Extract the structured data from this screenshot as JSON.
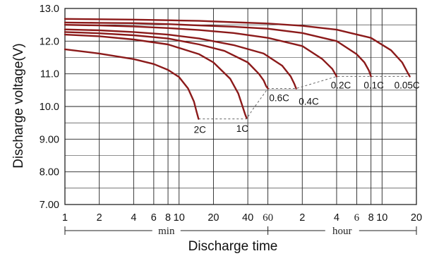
{
  "chart_data": {
    "type": "line",
    "title": "",
    "xlabel": "Discharge time",
    "ylabel": "Discharge voltage(V)",
    "x_scale": "log",
    "x_unit_note": "x values in minutes",
    "ylim": [
      7.0,
      13.0
    ],
    "xlim": [
      1,
      1200
    ],
    "grid": true,
    "y_ticks": [
      "13.0",
      "12.0",
      "11.0",
      "10.0",
      "9.00",
      "8.00",
      "7.00"
    ],
    "x_tick_labels": [
      "1",
      "2",
      "4",
      "6",
      "8",
      "10",
      "20",
      "40",
      "60",
      "2",
      "4",
      "6",
      "8",
      "10",
      "20"
    ],
    "x_ranges": [
      {
        "label": "min"
      },
      {
        "label": "hour"
      }
    ],
    "series": [
      {
        "name": "2C",
        "x": [
          1,
          2,
          4,
          6,
          8,
          10,
          12,
          13.5,
          14.2,
          14.6,
          14.8
        ],
        "y": [
          11.75,
          11.62,
          11.45,
          11.3,
          11.12,
          10.9,
          10.55,
          10.15,
          9.85,
          9.7,
          9.62
        ]
      },
      {
        "name": "1C",
        "x": [
          1,
          2,
          4,
          8,
          15,
          20,
          28,
          33,
          36,
          38,
          39
        ],
        "y": [
          12.2,
          12.15,
          12.05,
          11.9,
          11.6,
          11.35,
          10.85,
          10.4,
          10.0,
          9.75,
          9.65
        ]
      },
      {
        "name": "0.6C",
        "x": [
          1,
          2,
          4,
          8,
          15,
          25,
          40,
          50,
          55,
          58,
          60
        ],
        "y": [
          12.28,
          12.24,
          12.18,
          12.08,
          11.9,
          11.7,
          11.35,
          11.0,
          10.8,
          10.62,
          10.55
        ]
      },
      {
        "name": "0.4C",
        "x": [
          1,
          2,
          4,
          8,
          15,
          30,
          55,
          80,
          95,
          102,
          106
        ],
        "y": [
          12.36,
          12.33,
          12.28,
          12.2,
          12.08,
          11.88,
          11.62,
          11.25,
          10.92,
          10.7,
          10.55
        ]
      },
      {
        "name": "0.2C",
        "x": [
          1,
          2,
          4,
          8,
          15,
          30,
          60,
          120,
          180,
          220,
          240
        ],
        "y": [
          12.5,
          12.48,
          12.45,
          12.4,
          12.34,
          12.25,
          12.1,
          11.85,
          11.45,
          11.15,
          10.92
        ]
      },
      {
        "name": "0.1C",
        "x": [
          1,
          2,
          4,
          8,
          15,
          30,
          60,
          120,
          240,
          360,
          420,
          460,
          480
        ],
        "y": [
          12.57,
          12.56,
          12.55,
          12.52,
          12.48,
          12.44,
          12.38,
          12.25,
          12.0,
          11.6,
          11.35,
          11.1,
          10.92
        ]
      },
      {
        "name": "0.05C",
        "x": [
          1,
          2,
          4,
          8,
          15,
          30,
          60,
          120,
          240,
          480,
          720,
          900,
          1000,
          1050
        ],
        "y": [
          12.68,
          12.67,
          12.66,
          12.64,
          12.62,
          12.58,
          12.54,
          12.47,
          12.35,
          12.1,
          11.72,
          11.35,
          11.05,
          10.92
        ]
      }
    ],
    "cutoff_line": {
      "x": [
        14.8,
        39,
        44,
        60,
        106,
        240,
        480,
        1050
      ],
      "y": [
        9.62,
        9.62,
        9.9,
        10.55,
        10.55,
        10.92,
        10.92,
        10.92
      ]
    },
    "colors": {
      "curve": "#8b1a1a",
      "grid": "#222222",
      "cutoff": "#666666"
    }
  }
}
